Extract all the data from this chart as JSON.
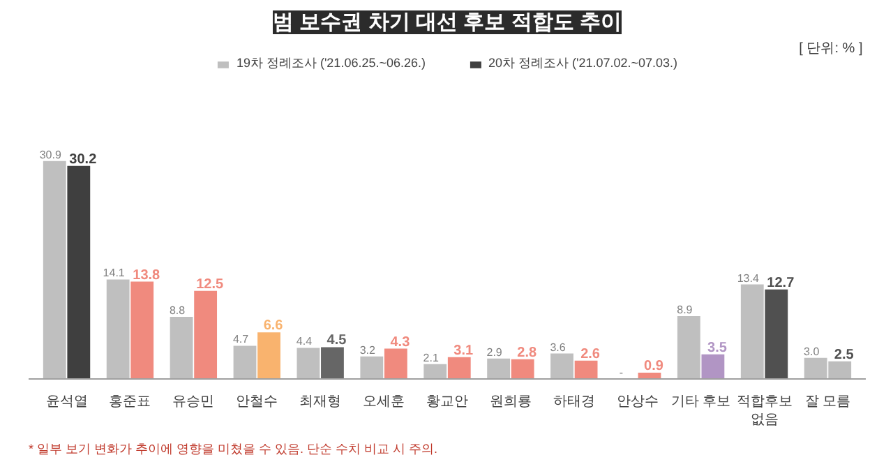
{
  "chart_data": {
    "type": "bar",
    "title": "범 보수권 차기 대선 후보 적합도 추이",
    "categories": [
      "윤석열",
      "홍준표",
      "유승민",
      "안철수",
      "최재형",
      "오세훈",
      "황교안",
      "원희룡",
      "하태경",
      "안상수",
      "기타 후보",
      "적합후보\n없음",
      "잘 모름"
    ],
    "series": [
      {
        "name": "19차 정례조사 ('21.06.25.~06.26.)",
        "color": "#bfbfbf",
        "values": [
          30.9,
          14.1,
          8.8,
          4.7,
          4.4,
          3.2,
          2.1,
          2.9,
          3.6,
          null,
          8.9,
          13.4,
          3.0
        ],
        "value_labels": [
          "30.9",
          "14.1",
          "8.8",
          "4.7",
          "4.4",
          "3.2",
          "2.1",
          "2.9",
          "3.6",
          "-",
          "8.9",
          "13.4",
          "3.0"
        ]
      },
      {
        "name": "20차 정례조사 ('21.07.02.~07.03.)",
        "colors": [
          "#3f3f3f",
          "#f08a7e",
          "#f08a7e",
          "#f9b36e",
          "#666666",
          "#f08a7e",
          "#f08a7e",
          "#f08a7e",
          "#f08a7e",
          "#f08a7e",
          "#b195c4",
          "#505050",
          "#bdbdbd"
        ],
        "values": [
          30.2,
          13.8,
          12.5,
          6.6,
          4.5,
          4.3,
          3.1,
          2.8,
          2.6,
          0.9,
          3.5,
          12.7,
          2.5
        ],
        "value_labels": [
          "30.2",
          "13.8",
          "12.5",
          "6.6",
          "4.5",
          "4.3",
          "3.1",
          "2.8",
          "2.6",
          "0.9",
          "3.5",
          "12.7",
          "2.5"
        ]
      }
    ],
    "annotations": [
      "[ 단위: % ]",
      "* 일부 보기 변화가 추이에 영향을 미쳤을 수 있음. 단순 수치 비교 시 주의."
    ],
    "legend": "top",
    "grid": false
  }
}
